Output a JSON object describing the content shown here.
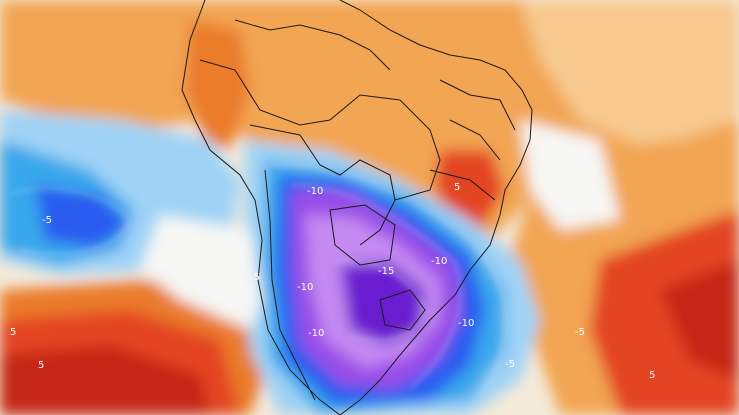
{
  "map": {
    "subject": "temperature anomaly over South America",
    "palette": {
      "deep_purple": "#6a1fd0",
      "violet": "#9a4de8",
      "light_violet": "#c48af2",
      "blue": "#2a5cf0",
      "cyan": "#37a7ec",
      "light_blue": "#9fd3f6",
      "white": "#f7f7f5",
      "light_orange": "#f7c98f",
      "orange": "#f2a552",
      "dark_orange": "#ea7c2c",
      "red": "#e34421",
      "dark_red": "#c52613",
      "borders": "#1a1a1a",
      "contours": "#ffffff"
    },
    "contour_labels": [
      "-10",
      "-5",
      "-15",
      "-10",
      "-10",
      "-10",
      "-10",
      "-5",
      "5",
      "5",
      "5",
      "-5",
      "-5",
      "5"
    ]
  }
}
